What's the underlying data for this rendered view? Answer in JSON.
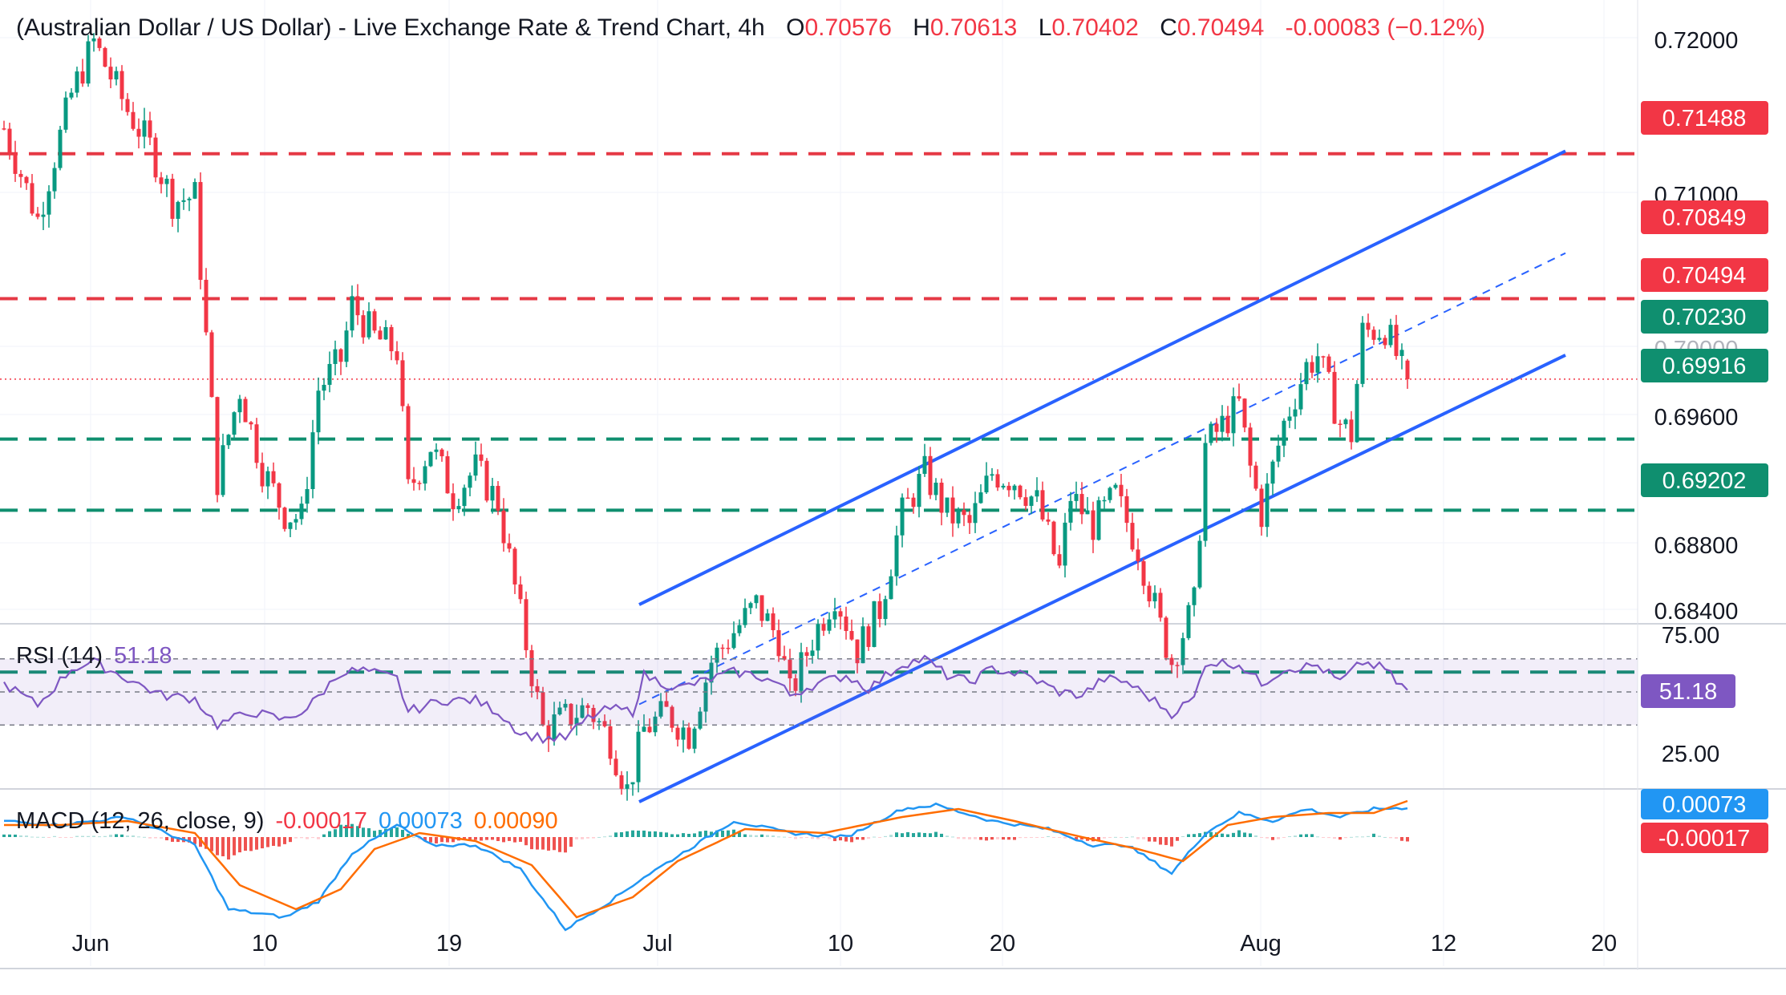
{
  "header": {
    "title": "(Australian Dollar / US Dollar) - Live Exchange Rate & Trend Chart, 4h",
    "open_label": "O",
    "open": "0.70576",
    "high_label": "H",
    "high": "0.70613",
    "low_label": "L",
    "low": "0.70402",
    "close_label": "C",
    "close": "0.70494",
    "change": "-0.00083 (−0.12%)"
  },
  "colors": {
    "up": "#089981",
    "down": "#f23645",
    "channel": "#2962ff",
    "resistance": "#e53945",
    "support": "#0f8f6f",
    "rsi": "#7e57c2",
    "macd": "#2196f3",
    "signal": "#ff6d00"
  },
  "chart_data": [
    {
      "type": "candlestick",
      "title": "(Australian Dollar / US Dollar) - Live Exchange Rate & Trend Chart, 4h",
      "ylim": [
        0.6835,
        0.7215
      ],
      "y_ticks": [
        "0.72000",
        "0.71000",
        "0.69600",
        "0.68800",
        "0.68400"
      ],
      "x_ticks": [
        "Jun",
        "10",
        "19",
        "Jul",
        "10",
        "20",
        "Aug",
        "12",
        "20"
      ],
      "candle_count": 204,
      "price_anchors": [
        {
          "bar": 0,
          "price": 0.716
        },
        {
          "bar": 6,
          "price": 0.712
        },
        {
          "bar": 12,
          "price": 0.7175
        },
        {
          "bar": 16,
          "price": 0.7198
        },
        {
          "bar": 22,
          "price": 0.7168
        },
        {
          "bar": 26,
          "price": 0.7152
        },
        {
          "bar": 30,
          "price": 0.7128
        },
        {
          "bar": 34,
          "price": 0.713
        },
        {
          "bar": 38,
          "price": 0.7005
        },
        {
          "bar": 42,
          "price": 0.7045
        },
        {
          "bar": 46,
          "price": 0.701
        },
        {
          "bar": 50,
          "price": 0.699
        },
        {
          "bar": 53,
          "price": 0.6988
        },
        {
          "bar": 56,
          "price": 0.7045
        },
        {
          "bar": 60,
          "price": 0.7058
        },
        {
          "bar": 62,
          "price": 0.7082
        },
        {
          "bar": 66,
          "price": 0.7068
        },
        {
          "bar": 70,
          "price": 0.7062
        },
        {
          "bar": 72,
          "price": 0.7
        },
        {
          "bar": 76,
          "price": 0.702
        },
        {
          "bar": 80,
          "price": 0.6998
        },
        {
          "bar": 84,
          "price": 0.701
        },
        {
          "bar": 88,
          "price": 0.6995
        },
        {
          "bar": 92,
          "price": 0.6945
        },
        {
          "bar": 96,
          "price": 0.6895
        },
        {
          "bar": 100,
          "price": 0.69
        },
        {
          "bar": 104,
          "price": 0.6905
        },
        {
          "bar": 108,
          "price": 0.689
        },
        {
          "bar": 111,
          "price": 0.6868
        },
        {
          "bar": 114,
          "price": 0.6895
        },
        {
          "bar": 118,
          "price": 0.6902
        },
        {
          "bar": 122,
          "price": 0.6893
        },
        {
          "bar": 126,
          "price": 0.6925
        },
        {
          "bar": 130,
          "price": 0.6938
        },
        {
          "bar": 134,
          "price": 0.695
        },
        {
          "bar": 138,
          "price": 0.6935
        },
        {
          "bar": 140,
          "price": 0.691
        },
        {
          "bar": 144,
          "price": 0.6935
        },
        {
          "bar": 148,
          "price": 0.6955
        },
        {
          "bar": 152,
          "price": 0.693
        },
        {
          "bar": 156,
          "price": 0.6948
        },
        {
          "bar": 160,
          "price": 0.699
        },
        {
          "bar": 164,
          "price": 0.7008
        },
        {
          "bar": 168,
          "price": 0.699
        },
        {
          "bar": 172,
          "price": 0.6985
        },
        {
          "bar": 176,
          "price": 0.7008
        },
        {
          "bar": 180,
          "price": 0.7005
        },
        {
          "bar": 184,
          "price": 0.6995
        },
        {
          "bar": 188,
          "price": 0.6965
        },
        {
          "bar": 190,
          "price": 0.6998
        },
        {
          "bar": 194,
          "price": 0.6985
        },
        {
          "bar": 198,
          "price": 0.6998
        },
        {
          "bar": 202,
          "price": 0.6975
        },
        {
          "bar": 206,
          "price": 0.694
        },
        {
          "bar": 208,
          "price": 0.6925
        },
        {
          "bar": 212,
          "price": 0.695
        },
        {
          "bar": 214,
          "price": 0.702
        },
        {
          "bar": 218,
          "price": 0.7032
        },
        {
          "bar": 220,
          "price": 0.7038
        },
        {
          "bar": 222,
          "price": 0.701
        },
        {
          "bar": 224,
          "price": 0.699
        },
        {
          "bar": 228,
          "price": 0.703
        },
        {
          "bar": 232,
          "price": 0.7055
        },
        {
          "bar": 234,
          "price": 0.706
        },
        {
          "bar": 238,
          "price": 0.703
        },
        {
          "bar": 240,
          "price": 0.7025
        },
        {
          "bar": 242,
          "price": 0.707
        },
        {
          "bar": 246,
          "price": 0.7072
        },
        {
          "bar": 248,
          "price": 0.706
        },
        {
          "bar": 250,
          "price": 0.7049
        }
      ],
      "horizontal_levels": [
        {
          "value": 0.71488,
          "label": "0.71488",
          "role": "resistance"
        },
        {
          "value": 0.70849,
          "label": "0.70849",
          "role": "resistance"
        },
        {
          "value": 0.70494,
          "label": "0.70494",
          "role": "last-price"
        },
        {
          "value": 0.7023,
          "label": "0.70230",
          "role": "support"
        },
        {
          "value": 0.69916,
          "label": "0.69916",
          "role": "support"
        },
        {
          "value": 0.69202,
          "label": "0.69202",
          "role": "support"
        }
      ],
      "channel": {
        "upper": [
          {
            "date": "Jun 28",
            "price": 0.695
          },
          {
            "date": "Aug 18",
            "price": 0.715
          }
        ],
        "lower": [
          {
            "date": "Jun 28",
            "price": 0.6863
          },
          {
            "date": "Aug 18",
            "price": 0.706
          }
        ],
        "mid": [
          {
            "date": "Jun 28",
            "price": 0.6906
          },
          {
            "date": "Aug 18",
            "price": 0.7105
          }
        ]
      },
      "dimmed_tick": "0.70000"
    },
    {
      "type": "line",
      "title": "RSI (14)",
      "value_label": "51.18",
      "ylim": [
        10,
        90
      ],
      "y_ticks": [
        "75.00",
        "25.00"
      ],
      "bands": [
        70,
        50,
        30
      ],
      "anchors": [
        {
          "bar": 0,
          "v": 55
        },
        {
          "bar": 6,
          "v": 42
        },
        {
          "bar": 12,
          "v": 64
        },
        {
          "bar": 16,
          "v": 68
        },
        {
          "bar": 22,
          "v": 58
        },
        {
          "bar": 28,
          "v": 48
        },
        {
          "bar": 34,
          "v": 46
        },
        {
          "bar": 38,
          "v": 30
        },
        {
          "bar": 44,
          "v": 38
        },
        {
          "bar": 50,
          "v": 33
        },
        {
          "bar": 54,
          "v": 40
        },
        {
          "bar": 60,
          "v": 62
        },
        {
          "bar": 64,
          "v": 63
        },
        {
          "bar": 70,
          "v": 58
        },
        {
          "bar": 72,
          "v": 38
        },
        {
          "bar": 78,
          "v": 45
        },
        {
          "bar": 84,
          "v": 45
        },
        {
          "bar": 88,
          "v": 38
        },
        {
          "bar": 92,
          "v": 25
        },
        {
          "bar": 96,
          "v": 22
        },
        {
          "bar": 100,
          "v": 22
        },
        {
          "bar": 104,
          "v": 34
        },
        {
          "bar": 108,
          "v": 40
        },
        {
          "bar": 112,
          "v": 38
        },
        {
          "bar": 114,
          "v": 60
        },
        {
          "bar": 120,
          "v": 52
        },
        {
          "bar": 124,
          "v": 56
        },
        {
          "bar": 130,
          "v": 62
        },
        {
          "bar": 134,
          "v": 60
        },
        {
          "bar": 138,
          "v": 55
        },
        {
          "bar": 140,
          "v": 48
        },
        {
          "bar": 144,
          "v": 54
        },
        {
          "bar": 150,
          "v": 60
        },
        {
          "bar": 154,
          "v": 52
        },
        {
          "bar": 160,
          "v": 67
        },
        {
          "bar": 164,
          "v": 70
        },
        {
          "bar": 168,
          "v": 60
        },
        {
          "bar": 172,
          "v": 56
        },
        {
          "bar": 176,
          "v": 64
        },
        {
          "bar": 182,
          "v": 60
        },
        {
          "bar": 188,
          "v": 50
        },
        {
          "bar": 192,
          "v": 48
        },
        {
          "bar": 196,
          "v": 58
        },
        {
          "bar": 200,
          "v": 56
        },
        {
          "bar": 206,
          "v": 42
        },
        {
          "bar": 208,
          "v": 37
        },
        {
          "bar": 212,
          "v": 46
        },
        {
          "bar": 214,
          "v": 68
        },
        {
          "bar": 220,
          "v": 67
        },
        {
          "bar": 224,
          "v": 55
        },
        {
          "bar": 228,
          "v": 64
        },
        {
          "bar": 234,
          "v": 66
        },
        {
          "bar": 238,
          "v": 56
        },
        {
          "bar": 242,
          "v": 68
        },
        {
          "bar": 246,
          "v": 64
        },
        {
          "bar": 248,
          "v": 56
        },
        {
          "bar": 250,
          "v": 51.18
        }
      ]
    },
    {
      "type": "line",
      "title": "MACD (12, 26, close, 9)",
      "histogram_label": "-0.00017",
      "macd_label": "0.00073",
      "signal_label": "0.00090",
      "ylim": [
        -0.0028,
        0.0012
      ],
      "series": [
        {
          "name": "MACD",
          "anchors": [
            {
              "bar": 0,
              "v": 0.0004
            },
            {
              "bar": 10,
              "v": 0.0003
            },
            {
              "bar": 22,
              "v": 0.0005
            },
            {
              "bar": 34,
              "v": -0.0002
            },
            {
              "bar": 40,
              "v": -0.0018
            },
            {
              "bar": 50,
              "v": -0.002
            },
            {
              "bar": 56,
              "v": -0.0016
            },
            {
              "bar": 62,
              "v": -0.0004
            },
            {
              "bar": 70,
              "v": 0.0003
            },
            {
              "bar": 76,
              "v": -0.0002
            },
            {
              "bar": 84,
              "v": -0.0002
            },
            {
              "bar": 92,
              "v": -0.0008
            },
            {
              "bar": 100,
              "v": -0.0023
            },
            {
              "bar": 108,
              "v": -0.0016
            },
            {
              "bar": 114,
              "v": -0.001
            },
            {
              "bar": 122,
              "v": -0.0003
            },
            {
              "bar": 130,
              "v": 0.0004
            },
            {
              "bar": 140,
              "v": 0.0001
            },
            {
              "bar": 150,
              "v": 0.0
            },
            {
              "bar": 160,
              "v": 0.0007
            },
            {
              "bar": 166,
              "v": 0.0008
            },
            {
              "bar": 176,
              "v": 0.0004
            },
            {
              "bar": 186,
              "v": 0.0002
            },
            {
              "bar": 194,
              "v": -0.0002
            },
            {
              "bar": 200,
              "v": -0.0002
            },
            {
              "bar": 208,
              "v": -0.0009
            },
            {
              "bar": 214,
              "v": 0.0001
            },
            {
              "bar": 220,
              "v": 0.0006
            },
            {
              "bar": 226,
              "v": 0.0004
            },
            {
              "bar": 232,
              "v": 0.0007
            },
            {
              "bar": 238,
              "v": 0.0005
            },
            {
              "bar": 244,
              "v": 0.0007
            },
            {
              "bar": 250,
              "v": 0.00073
            }
          ]
        },
        {
          "name": "Signal",
          "anchors": [
            {
              "bar": 0,
              "v": 0.0003
            },
            {
              "bar": 10,
              "v": 0.0003
            },
            {
              "bar": 22,
              "v": 0.0004
            },
            {
              "bar": 34,
              "v": 0.0001
            },
            {
              "bar": 42,
              "v": -0.0012
            },
            {
              "bar": 52,
              "v": -0.0018
            },
            {
              "bar": 60,
              "v": -0.0013
            },
            {
              "bar": 66,
              "v": -0.0003
            },
            {
              "bar": 74,
              "v": 0.0001
            },
            {
              "bar": 84,
              "v": -0.0001
            },
            {
              "bar": 94,
              "v": -0.0007
            },
            {
              "bar": 102,
              "v": -0.002
            },
            {
              "bar": 112,
              "v": -0.0015
            },
            {
              "bar": 120,
              "v": -0.0006
            },
            {
              "bar": 132,
              "v": 0.0002
            },
            {
              "bar": 146,
              "v": 0.0001
            },
            {
              "bar": 160,
              "v": 0.0005
            },
            {
              "bar": 170,
              "v": 0.0007
            },
            {
              "bar": 180,
              "v": 0.0004
            },
            {
              "bar": 192,
              "v": 0.0
            },
            {
              "bar": 202,
              "v": -0.0003
            },
            {
              "bar": 210,
              "v": -0.0006
            },
            {
              "bar": 218,
              "v": 0.0003
            },
            {
              "bar": 226,
              "v": 0.0005
            },
            {
              "bar": 236,
              "v": 0.0006
            },
            {
              "bar": 244,
              "v": 0.0006
            },
            {
              "bar": 250,
              "v": 0.0009
            }
          ]
        }
      ]
    }
  ],
  "price_labels": {
    "r1": "0.71488",
    "r2": "0.70849",
    "last": "0.70494",
    "s1": "0.70230",
    "s2": "0.69916",
    "s3": "0.69202",
    "tick_720": "0.72000",
    "tick_710": "0.71000",
    "tick_696": "0.69600",
    "tick_688": "0.68800",
    "tick_684": "0.68400",
    "tick_700": "0.70000"
  },
  "rsi": {
    "label": "RSI (14)",
    "value": "51.18",
    "tick_top": "75.00",
    "tick_bottom": "25.00"
  },
  "macd": {
    "label": "MACD (12, 26, close, 9)",
    "hist": "-0.00017",
    "macd": "0.00073",
    "signal": "0.00090"
  },
  "x_axis": [
    "Jun",
    "10",
    "19",
    "Jul",
    "10",
    "20",
    "Aug",
    "12",
    "20"
  ]
}
